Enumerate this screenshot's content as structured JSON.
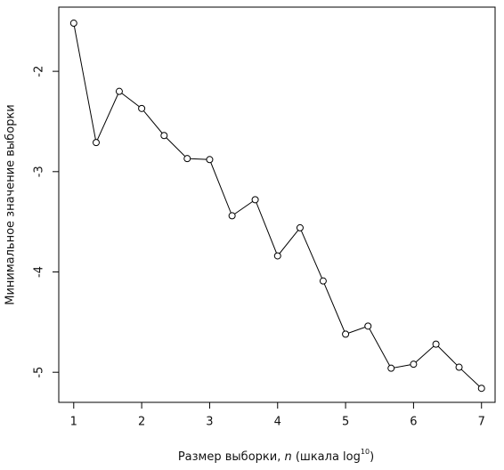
{
  "chart_data": {
    "type": "line",
    "y_label": "Минимальное значение выборки",
    "x_label_parts": [
      "Размер выборки, ",
      "n",
      " (шкала  log",
      "10",
      ")"
    ],
    "x": [
      1,
      1.33,
      1.67,
      2,
      2.33,
      2.67,
      3,
      3.33,
      3.67,
      4,
      4.33,
      4.67,
      5,
      5.33,
      5.67,
      6,
      6.33,
      6.67,
      7
    ],
    "values": [
      -1.52,
      -2.71,
      -2.2,
      -2.37,
      -2.64,
      -2.87,
      -2.88,
      -3.44,
      -3.28,
      -3.84,
      -3.56,
      -4.09,
      -4.62,
      -4.54,
      -4.96,
      -4.92,
      -4.72,
      -4.95,
      -5.16
    ],
    "color": "#000000",
    "xlim": [
      0.78,
      7.2
    ],
    "xticks": [
      1,
      2,
      3,
      4,
      5,
      6,
      7
    ],
    "ylim": [
      -5.3,
      -1.36
    ],
    "yticks": [
      -5,
      -4,
      -3,
      -2
    ],
    "grid": false
  }
}
